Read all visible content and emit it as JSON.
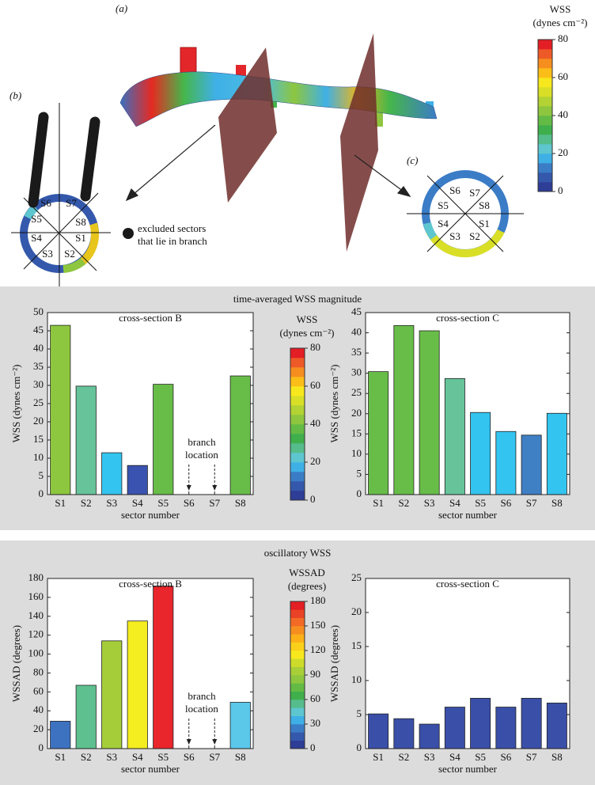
{
  "figure": {
    "panel_labels": [
      "(a)",
      "(b)",
      "(c)"
    ],
    "colorbar": {
      "title": "WSS",
      "unit": "(dynes cm⁻²)",
      "lim": [
        0,
        80
      ],
      "ticks": [
        0,
        20,
        40,
        60,
        80
      ],
      "colors": [
        "#2e3d96",
        "#3458ab",
        "#3b7cc6",
        "#3fb0e6",
        "#5ec6cf",
        "#55bd8c",
        "#3faf4c",
        "#63bb45",
        "#8ec63f",
        "#b3d234",
        "#d9df27",
        "#f7e81d",
        "#fbbd18",
        "#f68e1f",
        "#ee5a27",
        "#e31e24"
      ]
    },
    "sectors_b": [
      "S1",
      "S2",
      "S3",
      "S4",
      "S5",
      "S6",
      "S7",
      "S8"
    ],
    "sectors_c": [
      "S1",
      "S2",
      "S3",
      "S4",
      "S5",
      "S6",
      "S7",
      "S8"
    ],
    "legend": [
      "excluded sectors",
      "that lie in branch"
    ]
  },
  "sections": [
    "time-averaged WSS magnitude",
    "oscillatory WSS"
  ],
  "chart_data": [
    {
      "type": "bar",
      "title": "cross-section B",
      "x_label": "sector number",
      "y_label": "WSS (dynes cm⁻²)",
      "categories": [
        "S1",
        "S2",
        "S3",
        "S4",
        "S5",
        "S6",
        "S7",
        "S8"
      ],
      "values": [
        46.5,
        29.8,
        11.5,
        8,
        30.3,
        null,
        null,
        32.6
      ],
      "colors": [
        "#8dc63f",
        "#66c39a",
        "#34c4f0",
        "#3a53b0",
        "#68bd48",
        null,
        null,
        "#68bd48"
      ],
      "ylim": [
        0,
        50
      ],
      "yticks": [
        0,
        5,
        10,
        15,
        20,
        25,
        30,
        35,
        40,
        45,
        50
      ],
      "annotation": [
        "branch",
        "location"
      ],
      "colorbar": {
        "title": "WSS",
        "unit": "(dynes cm⁻²)",
        "lim": [
          0,
          80
        ],
        "ticks": [
          0,
          20,
          40,
          60,
          80
        ],
        "colors": [
          "#2e3d96",
          "#3458ab",
          "#3b7cc6",
          "#3fb0e6",
          "#5ec6cf",
          "#55bd8c",
          "#3faf4c",
          "#63bb45",
          "#8ec63f",
          "#b3d234",
          "#d9df27",
          "#f7e81d",
          "#fbbd18",
          "#f68e1f",
          "#ee5a27",
          "#e31e24"
        ]
      }
    },
    {
      "type": "bar",
      "title": "cross-section C",
      "x_label": "sector number",
      "y_label": "WSS (dynes cm⁻²)",
      "categories": [
        "S1",
        "S2",
        "S3",
        "S4",
        "S5",
        "S6",
        "S7",
        "S8"
      ],
      "values": [
        30.4,
        41.8,
        40.5,
        28.7,
        20.3,
        15.6,
        14.7,
        20.1
      ],
      "colors": [
        "#68bd48",
        "#68bd48",
        "#68bd48",
        "#66c39a",
        "#34c4f0",
        "#34c4f0",
        "#3f7fc4",
        "#34c4f0"
      ],
      "ylim": [
        0,
        45
      ],
      "yticks": [
        0,
        5,
        10,
        15,
        20,
        25,
        30,
        35,
        40,
        45
      ]
    },
    {
      "type": "bar",
      "title": "cross-section B",
      "x_label": "sector number",
      "y_label": "WSSAD (degrees)",
      "categories": [
        "S1",
        "S2",
        "S3",
        "S4",
        "S5",
        "S6",
        "S7",
        "S8"
      ],
      "values": [
        29,
        67,
        114,
        135,
        172,
        null,
        null,
        49
      ],
      "colors": [
        "#3d72c0",
        "#5ec08f",
        "#a5cd39",
        "#f4ed1f",
        "#e8262b",
        null,
        null,
        "#5bc8ea"
      ],
      "ylim": [
        0,
        180
      ],
      "yticks": [
        0,
        20,
        40,
        60,
        80,
        100,
        120,
        140,
        160,
        180
      ],
      "annotation": [
        "branch",
        "location"
      ],
      "colorbar": {
        "title": "WSSAD",
        "unit": "(degrees)",
        "lim": [
          0,
          180
        ],
        "ticks": [
          0,
          30,
          60,
          90,
          120,
          150,
          180
        ],
        "colors": [
          "#2e3d96",
          "#3458ab",
          "#3b7cc6",
          "#3fb0e6",
          "#5ec6cf",
          "#55bd8c",
          "#3faf4c",
          "#63bb45",
          "#8ec63f",
          "#a8cf38",
          "#cddc2a",
          "#f7e81d",
          "#fbd019",
          "#fbb018",
          "#f68e1f",
          "#f26a25",
          "#ea4226",
          "#e31e24"
        ]
      }
    },
    {
      "type": "bar",
      "title": "cross-section C",
      "x_label": "sector number",
      "y_label": "WSSAD (degrees)",
      "categories": [
        "S1",
        "S2",
        "S3",
        "S4",
        "S5",
        "S6",
        "S7",
        "S8"
      ],
      "values": [
        5.1,
        4.4,
        3.6,
        6.1,
        7.4,
        6.1,
        7.4,
        6.7
      ],
      "colors": [
        "#3a4fa8",
        "#3a4fa8",
        "#3a4fa8",
        "#3a4fa8",
        "#3a4fa8",
        "#3a4fa8",
        "#3a4fa8",
        "#3a4fa8"
      ],
      "ylim": [
        0,
        25
      ],
      "yticks": [
        0,
        5,
        10,
        15,
        20,
        25
      ]
    }
  ]
}
